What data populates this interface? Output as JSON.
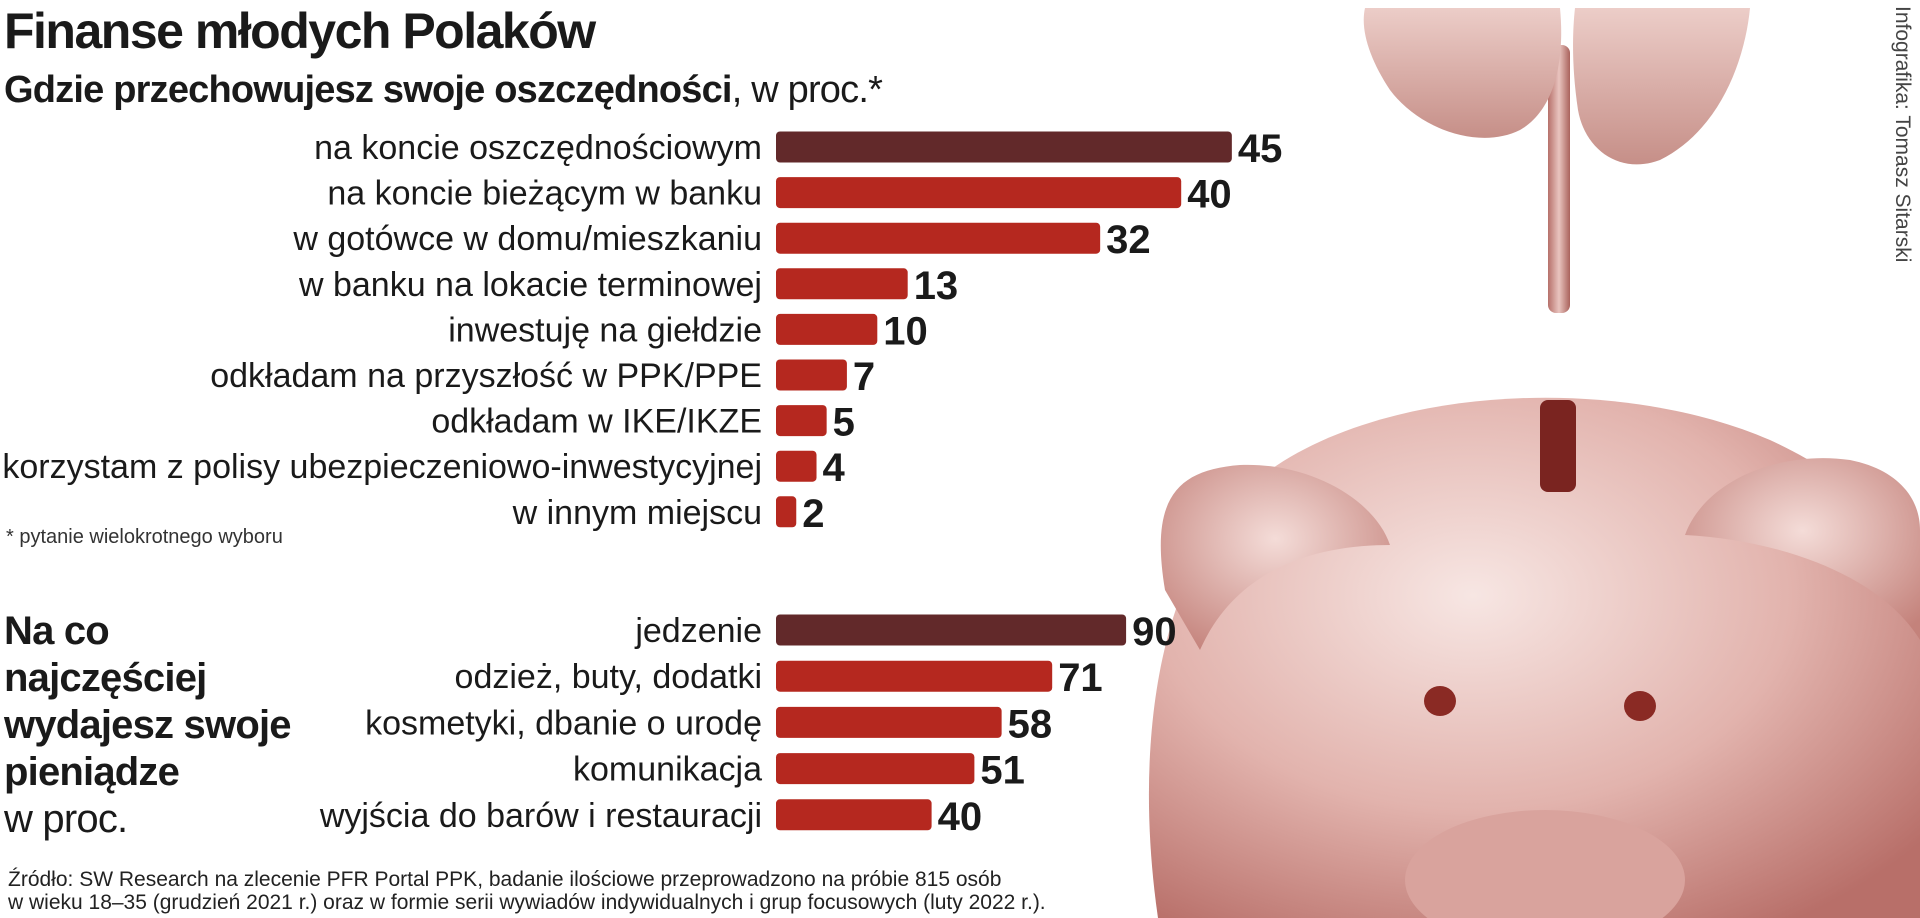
{
  "title": "Finanse młodych Polaków",
  "subtitle_bold": "Gdzie przechowujesz swoje oszczędności",
  "subtitle_rest": ", w proc.*",
  "footnote": "* pytanie wielokrotnego wyboru",
  "second_title_lines": [
    "Na co",
    "najczęściej",
    "wydajesz swoje",
    "pieniądze"
  ],
  "second_unit": "w proc.",
  "source_line1": "Źródło: SW Research na zlecenie PFR Portal PPK, badanie ilościowe przeprowadzono na próbie 815 osób",
  "source_line2": "w wieku 18–35 (grudzień 2021 r.) oraz w formie serii wywiadów indywidualnych i grup focusowych (luty 2022 r.).",
  "credit": "Infografika: Tomasz Sitarski",
  "colors": {
    "highlight": "#62292a",
    "bar": "#b5281f",
    "text": "#1a1a1a",
    "illustration": "#c98a85"
  },
  "chart_data": [
    {
      "type": "bar",
      "orientation": "horizontal",
      "categories": [
        "na koncie oszczędnościowym",
        "na koncie bieżącym w banku",
        "w gotówce w domu/mieszkaniu",
        "w banku na lokacie terminowej",
        "inwestuję na giełdzie",
        "odkładam na przyszłość w PPK/PPE",
        "odkładam w IKE/IKZE",
        "korzystam z polisy ubezpieczeniowo-inwestycyjnej",
        "w innym miejscu"
      ],
      "values": [
        45,
        40,
        32,
        13,
        10,
        7,
        5,
        4,
        2
      ],
      "xlim": [
        0,
        100
      ],
      "grid": false,
      "highlight_index": 0
    },
    {
      "type": "bar",
      "orientation": "horizontal",
      "categories": [
        "jedzenie",
        "odzież, buty, dodatki",
        "kosmetyki, dbanie o urodę",
        "komunikacja",
        "wyjścia do barów i restauracji"
      ],
      "values": [
        90,
        71,
        58,
        51,
        40
      ],
      "xlim": [
        0,
        100
      ],
      "grid": false,
      "highlight_index": 0
    }
  ]
}
